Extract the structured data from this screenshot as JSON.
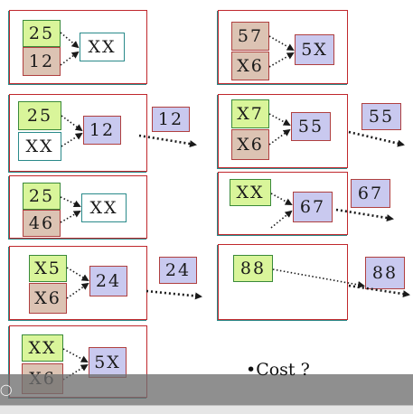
{
  "cells": {
    "p1_a": "25",
    "p1_b": "12",
    "p1_r": "XX",
    "p2_a": "25",
    "p2_b": "XX",
    "p2_r": "12",
    "p2_out": "12",
    "p3_a": "25",
    "p3_b": "46",
    "p3_r": "XX",
    "p4_a": "X5",
    "p4_b": "X6",
    "p4_r": "24",
    "p4_out": "24",
    "p5_a": "XX",
    "p5_b": "X6",
    "p5_r": "5X",
    "p6_a": "57",
    "p6_b": "X6",
    "p6_r": "5X",
    "p7_a": "X7",
    "p7_b": "X6",
    "p7_r": "55",
    "p7_out": "55",
    "p8_a": "XX",
    "p8_r": "67",
    "p8_out": "67",
    "p9_a": "88",
    "p9_out": "88"
  },
  "footer": {
    "cost": "•Cost ?"
  },
  "colors": {
    "green": "#d9f59a",
    "tan": "#dcc3b3",
    "lavender": "#c9c9ef",
    "panel_border": "#c0282d"
  }
}
